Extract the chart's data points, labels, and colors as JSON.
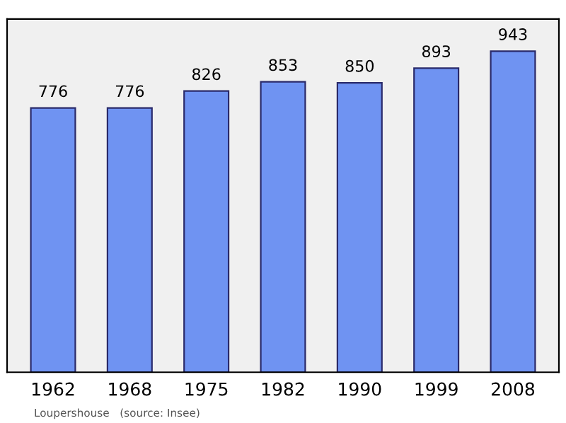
{
  "chart_data": {
    "type": "bar",
    "categories": [
      "1962",
      "1968",
      "1975",
      "1982",
      "1990",
      "1999",
      "2008"
    ],
    "values": [
      776,
      776,
      826,
      853,
      850,
      893,
      943
    ],
    "color": "#6f93f2",
    "data_labels": true,
    "grid": false,
    "annotations": [
      "Loupershouse   (source: Insee)"
    ]
  }
}
